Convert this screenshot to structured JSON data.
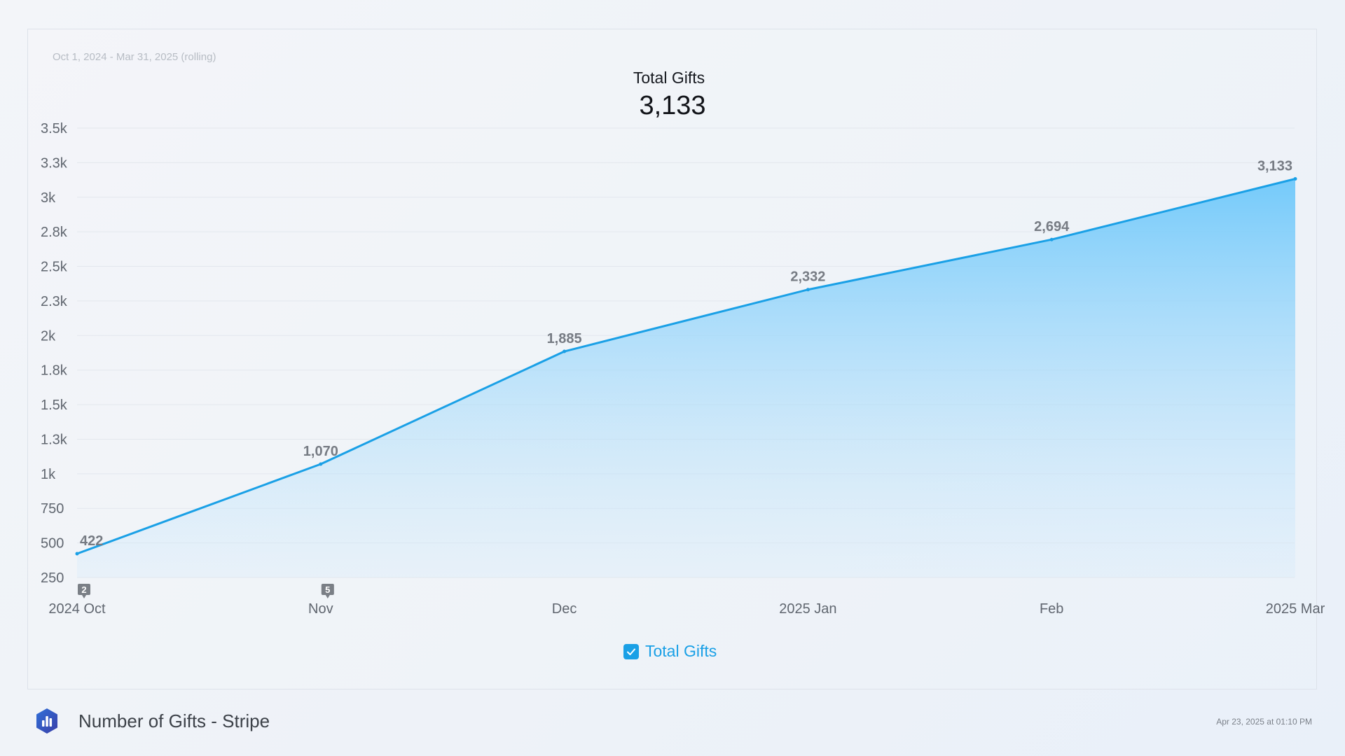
{
  "date_range": "Oct 1, 2024 - Mar 31, 2025 (rolling)",
  "chart_data": {
    "type": "area",
    "title": "Total Gifts",
    "total": "3,133",
    "x": [
      "2024 Oct",
      "Nov",
      "Dec",
      "2025 Jan",
      "Feb",
      "2025 Mar"
    ],
    "series": [
      {
        "name": "Total Gifts",
        "values": [
          422,
          1070,
          1885,
          2332,
          2694,
          3133
        ],
        "labels": [
          "422",
          "1,070",
          "1,885",
          "2,332",
          "2,694",
          "3,133"
        ],
        "color": "#1aa0e6"
      }
    ],
    "ylim": [
      250,
      3500
    ],
    "yticks": [
      250,
      500,
      750,
      1000,
      1250,
      1500,
      1750,
      2000,
      2250,
      2500,
      2750,
      3000,
      3250,
      3500
    ],
    "ytick_labels": [
      "250",
      "500",
      "750",
      "1k",
      "1.3k",
      "1.5k",
      "1.8k",
      "2k",
      "2.3k",
      "2.5k",
      "2.8k",
      "3k",
      "3.3k",
      "3.5k"
    ],
    "grid": true,
    "legend_position": "bottom-center",
    "annotations": [
      {
        "x": "2024 Oct",
        "label": "2"
      },
      {
        "x": "Nov",
        "label": "5"
      }
    ]
  },
  "legend": {
    "label": "Total Gifts",
    "checked": true,
    "color": "#1aa0e6"
  },
  "footer": {
    "title": "Number of Gifts - Stripe",
    "timestamp": "Apr 23, 2025 at 01:10 PM",
    "logo_icon": "bar-chart-hexagon-icon"
  }
}
